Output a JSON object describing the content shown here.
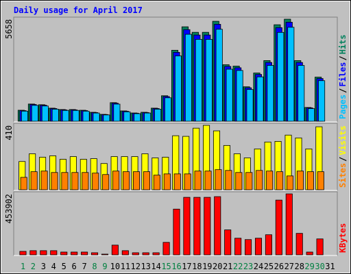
{
  "chart_data": [
    {
      "type": "bar",
      "title": "Daily usage for April 2017",
      "categories": [
        "1",
        "2",
        "3",
        "4",
        "5",
        "6",
        "7",
        "8",
        "9",
        "10",
        "11",
        "12",
        "13",
        "14",
        "15",
        "16",
        "17",
        "18",
        "19",
        "20",
        "21",
        "22",
        "23",
        "24",
        "25",
        "26",
        "27",
        "28",
        "29",
        "30",
        "31"
      ],
      "label_colors": [
        "#008040",
        "#008040",
        "#000000",
        "#000000",
        "#000000",
        "#000000",
        "#000000",
        "#008040",
        "#008040",
        "#000000",
        "#000000",
        "#000000",
        "#000000",
        "#000000",
        "#008040",
        "#008040",
        "#000000",
        "#000000",
        "#000000",
        "#000000",
        "#000000",
        "#008040",
        "#008040",
        "#000000",
        "#000000",
        "#000000",
        "#000000",
        "#000000",
        "#008040",
        "#008040",
        "#000000"
      ],
      "legend_separator": "/",
      "ylim": [
        0,
        5658
      ],
      "yticks": [
        5658
      ],
      "series": [
        {
          "name": "Hits",
          "color": "#00805c",
          "values": [
            610,
            955,
            917,
            726,
            650,
            650,
            610,
            497,
            382,
            1032,
            573,
            458,
            497,
            726,
            1414,
            3936,
            5236,
            4930,
            4930,
            5541,
            3134,
            3057,
            1911,
            2675,
            3363,
            5350,
            5658,
            3363,
            764,
            2446,
            0
          ]
        },
        {
          "name": "Files",
          "color": "#0000ff",
          "values": [
            590,
            930,
            890,
            705,
            630,
            630,
            590,
            480,
            370,
            1000,
            555,
            445,
            480,
            705,
            1370,
            3820,
            5080,
            4780,
            4780,
            5375,
            3040,
            2965,
            1855,
            2595,
            3260,
            5190,
            5490,
            3260,
            740,
            2370,
            0
          ]
        },
        {
          "name": "Pages",
          "color": "#00c0ff",
          "values": [
            560,
            880,
            845,
            670,
            600,
            600,
            560,
            455,
            350,
            950,
            525,
            420,
            455,
            670,
            1300,
            3620,
            4820,
            4540,
            4540,
            5100,
            2885,
            2815,
            1760,
            2460,
            3095,
            4925,
            5210,
            3095,
            700,
            2250,
            0
          ]
        }
      ]
    },
    {
      "type": "bar",
      "legend_separator": "/",
      "ylim": [
        0,
        410
      ],
      "yticks": [
        410
      ],
      "series": [
        {
          "name": "Visits",
          "color": "#ffff00",
          "values": [
            180,
            229,
            207,
            216,
            194,
            211,
            194,
            198,
            167,
            211,
            211,
            211,
            229,
            203,
            207,
            344,
            340,
            392,
            410,
            375,
            282,
            229,
            203,
            260,
            304,
            308,
            348,
            330,
            260,
            401,
            0
          ]
        },
        {
          "name": "Sites",
          "color": "#ff8000",
          "values": [
            79,
            115,
            119,
            110,
            110,
            110,
            110,
            106,
            97,
            119,
            115,
            115,
            115,
            93,
            101,
            101,
            101,
            119,
            119,
            128,
            123,
            110,
            110,
            123,
            119,
            115,
            88,
            119,
            115,
            115,
            0
          ]
        }
      ]
    },
    {
      "type": "bar",
      "ylim": [
        0,
        453902
      ],
      "yticks": [
        453902
      ],
      "series": [
        {
          "name": "KBytes",
          "color": "#ff0000",
          "values": [
            25790,
            31000,
            31000,
            31000,
            20600,
            20600,
            20600,
            15500,
            5200,
            72200,
            31000,
            15500,
            15500,
            15500,
            92800,
            340400,
            428100,
            428100,
            428100,
            433300,
            185700,
            123800,
            113500,
            123800,
            149600,
            407500,
            453902,
            159900,
            20600,
            118600,
            0
          ]
        }
      ]
    }
  ]
}
